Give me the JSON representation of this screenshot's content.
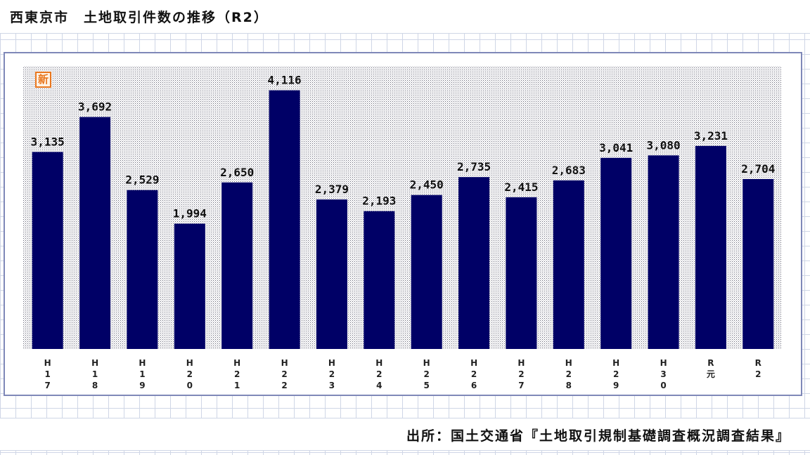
{
  "title": "西東京市　土地取引件数の推移（R2）",
  "badge": "新",
  "source": "出所：国土交通省『土地取引規制基礎調査概況調査結果』",
  "colors": {
    "bar": "#000066",
    "plot_dots": "#6b6b7a",
    "frame": "#7f88b8"
  },
  "chart_data": {
    "type": "bar",
    "title": "西東京市　土地取引件数の推移（R2）",
    "categories": [
      "H17",
      "H18",
      "H19",
      "H20",
      "H21",
      "H22",
      "H23",
      "H24",
      "H25",
      "H26",
      "H27",
      "H28",
      "H29",
      "H30",
      "R元",
      "R2"
    ],
    "tick_labels": [
      [
        "H",
        "1",
        "7"
      ],
      [
        "H",
        "1",
        "8"
      ],
      [
        "H",
        "1",
        "9"
      ],
      [
        "H",
        "2",
        "0"
      ],
      [
        "H",
        "2",
        "1"
      ],
      [
        "H",
        "2",
        "2"
      ],
      [
        "H",
        "2",
        "3"
      ],
      [
        "H",
        "2",
        "4"
      ],
      [
        "H",
        "2",
        "5"
      ],
      [
        "H",
        "2",
        "6"
      ],
      [
        "H",
        "2",
        "7"
      ],
      [
        "H",
        "2",
        "8"
      ],
      [
        "H",
        "2",
        "9"
      ],
      [
        "H",
        "3",
        "0"
      ],
      [
        "R",
        "元"
      ],
      [
        "R",
        "2"
      ]
    ],
    "values": [
      3135,
      3692,
      2529,
      1994,
      2650,
      4116,
      2379,
      2193,
      2450,
      2735,
      2415,
      2683,
      3041,
      3080,
      3231,
      2704
    ],
    "value_labels": [
      "3,135",
      "3,692",
      "2,529",
      "1,994",
      "2,650",
      "4,116",
      "2,379",
      "2,193",
      "2,450",
      "2,735",
      "2,415",
      "2,683",
      "3,041",
      "3,080",
      "3,231",
      "2,704"
    ],
    "ylim": [
      0,
      4400
    ],
    "xlabel": "",
    "ylabel": "",
    "grid": false,
    "legend": "none"
  }
}
